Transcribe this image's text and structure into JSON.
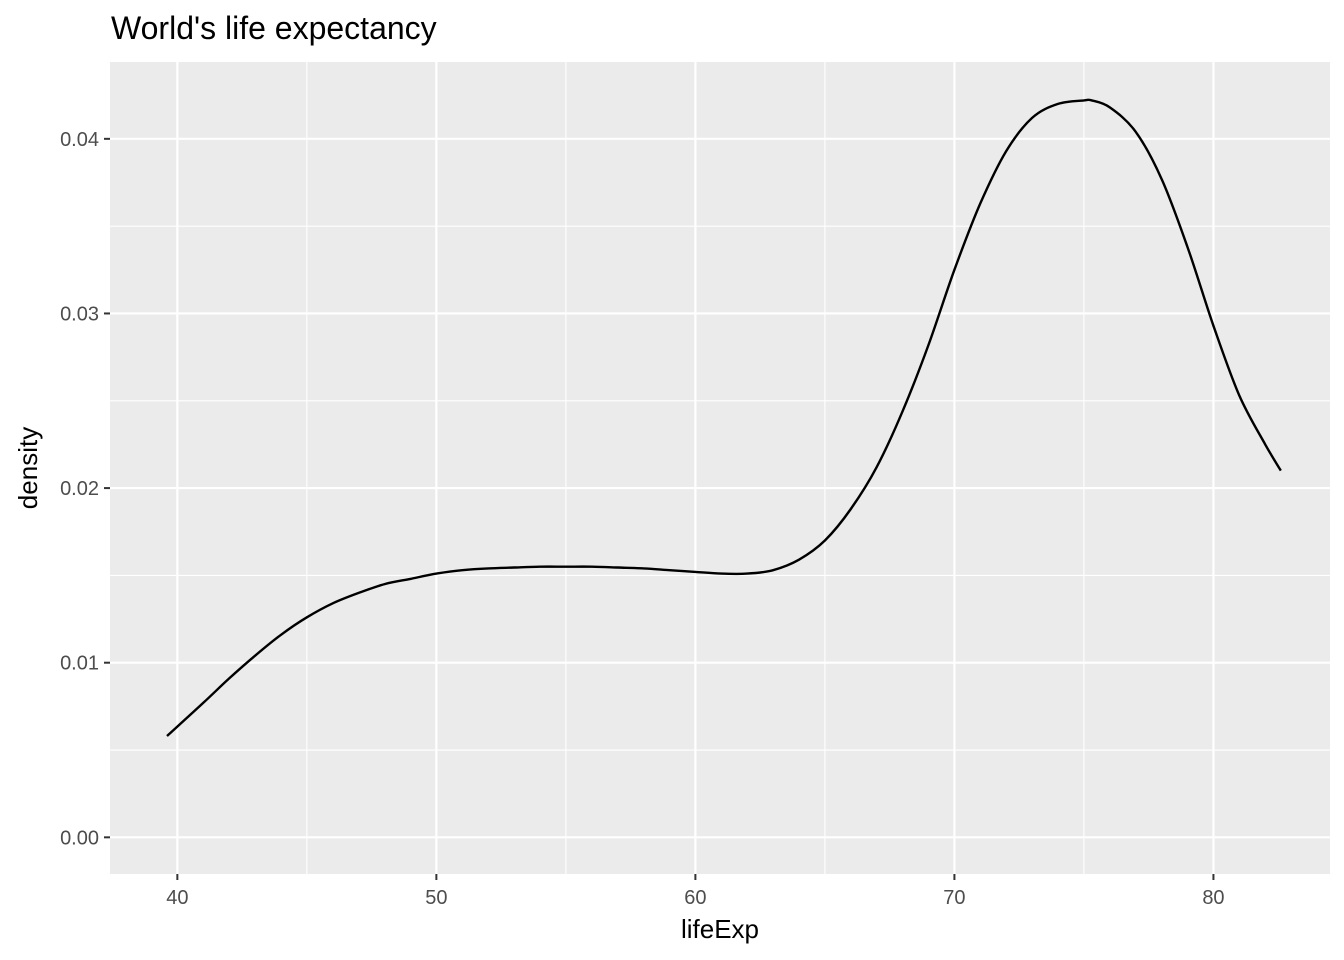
{
  "chart_data": {
    "type": "line",
    "title": "World's life expectancy",
    "xlabel": "lifeExp",
    "ylabel": "density",
    "xlim": [
      37.4,
      84.5
    ],
    "ylim": [
      -0.0021,
      0.0444
    ],
    "x_ticks": [
      40,
      50,
      60,
      70,
      80
    ],
    "y_ticks": [
      0.0,
      0.01,
      0.02,
      0.03,
      0.04
    ],
    "x_tick_labels": [
      "40",
      "50",
      "60",
      "70",
      "80"
    ],
    "y_tick_labels": [
      "0.00",
      "0.01",
      "0.02",
      "0.03",
      "0.04"
    ],
    "grid": true,
    "legend": "none",
    "colors": {
      "panel": "#ebebeb",
      "grid": "#ffffff",
      "line": "#000000"
    },
    "series": [
      {
        "x": [
          39.6,
          41,
          42,
          43,
          44,
          45,
          46,
          47,
          48,
          49,
          50,
          51,
          52,
          53,
          54,
          55,
          56,
          57,
          58,
          59,
          60,
          61,
          62,
          63,
          64,
          65,
          66,
          67,
          68,
          69,
          70,
          71,
          72,
          73,
          74,
          75,
          75.3,
          76,
          77,
          78,
          79,
          80,
          81,
          82,
          82.6
        ],
        "y": [
          0.0058,
          0.0077,
          0.0091,
          0.0104,
          0.0116,
          0.0126,
          0.0134,
          0.014,
          0.0145,
          0.0148,
          0.0151,
          0.0153,
          0.0154,
          0.01545,
          0.0155,
          0.0155,
          0.0155,
          0.01545,
          0.0154,
          0.0153,
          0.0152,
          0.0151,
          0.0151,
          0.0153,
          0.0159,
          0.017,
          0.0188,
          0.0212,
          0.0244,
          0.0282,
          0.0325,
          0.0363,
          0.0393,
          0.0412,
          0.042,
          0.0422,
          0.0422,
          0.0418,
          0.0404,
          0.0377,
          0.0338,
          0.0293,
          0.0253,
          0.0225,
          0.021
        ]
      }
    ]
  }
}
